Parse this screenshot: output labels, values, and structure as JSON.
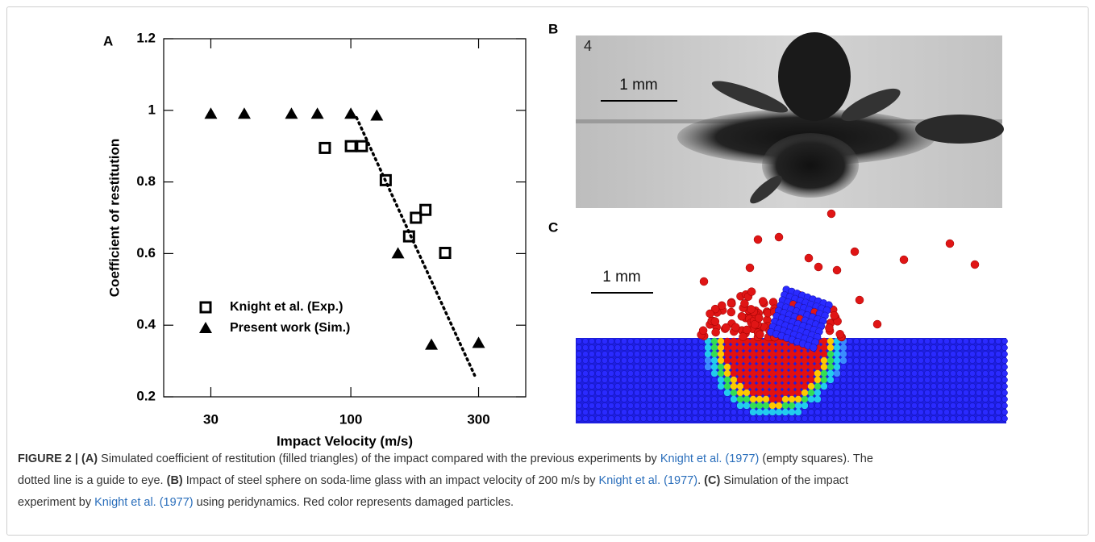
{
  "panel_labels": [
    "A",
    "B",
    "C"
  ],
  "chart_data": {
    "type": "scatter",
    "y_label": "Coefficient of restitution",
    "x_label": "Impact Velocity (m/s)",
    "x_scale": "log",
    "xlim": [
      20,
      450
    ],
    "xticks": [
      30,
      100,
      300
    ],
    "ylim": [
      0.2,
      1.2
    ],
    "yticks": [
      0.2,
      0.4,
      0.6,
      0.8,
      1,
      1.2
    ],
    "legend": "lower left",
    "series": [
      {
        "name": "Knight et al. (Exp.)",
        "marker": "square",
        "color": "#000000",
        "x": [
          80,
          100,
          110,
          135,
          165,
          175,
          190,
          225
        ],
        "values": [
          0.895,
          0.9,
          0.9,
          0.805,
          0.648,
          0.7,
          0.722,
          0.602
        ]
      },
      {
        "name": "Present work (Sim.)",
        "marker": "triangle",
        "color": "#000000",
        "x": [
          30,
          40,
          60,
          75,
          100,
          125,
          150,
          200,
          300
        ],
        "values": [
          0.99,
          0.99,
          0.99,
          0.99,
          0.99,
          0.985,
          0.6,
          0.345,
          0.35
        ]
      }
    ],
    "guide_line": {
      "x": [
        105,
        290
      ],
      "y": [
        0.98,
        0.26
      ]
    }
  },
  "panel_b": {
    "photo_label": "4",
    "scale_bar": "1 mm"
  },
  "panel_c": {
    "scale_bar": "1 mm"
  },
  "caption": {
    "segments": [
      "FIGURE 2 | (A)",
      " Simulated coefficient of restitution (filled triangles) of the impact compared with the previous experiments by ",
      "Knight et al. (1977)",
      " (empty squares). The",
      "dotted line is a guide to eye. ",
      "(B)",
      " Impact of steel sphere on soda-lime glass with an impact velocity of 200 m/s by ",
      "Knight et al. (1977)",
      ". ",
      "(C)",
      " Simulation of the impact",
      "experiment by ",
      "Knight et al. (1977)",
      " using peridynamics. Red color represents damaged particles."
    ]
  }
}
